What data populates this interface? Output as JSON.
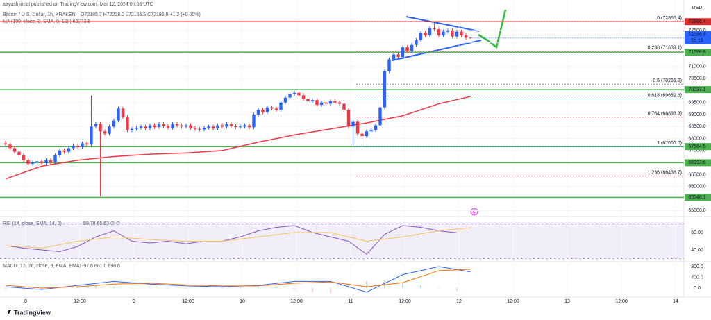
{
  "header": {
    "publisher": "aayushjindal published on TradingView.com, Mar 12, 2024 03:08 UTC",
    "symbol": "Bitcoin / U.S. Dollar, 1h, KRAKEN",
    "ohlc": "O72185.7 H72228.0 L72165.5 C72186.9 +1.2 (+0.00%)",
    "ma_label": "MA (100, close, 0, SMA, 0, 100) 69273.6",
    "currency": "USD"
  },
  "footer": {
    "brand": "TradingView"
  },
  "chart_data": {
    "type": "candlestick",
    "up_color": "#2962ff",
    "down_color": "#f23645",
    "ylim": [
      64750,
      73770
    ],
    "yticks": [
      {
        "value": 72500,
        "label": "72500.0"
      },
      {
        "value": 72000,
        "label": "72000.0"
      },
      {
        "value": 71000,
        "label": "71000.0"
      },
      {
        "value": 70500,
        "label": "70500.0"
      },
      {
        "value": 69500,
        "label": "69500.0"
      },
      {
        "value": 69000,
        "label": "69000.0"
      },
      {
        "value": 68500,
        "label": "68500.0"
      },
      {
        "value": 68000,
        "label": "68000.0"
      },
      {
        "value": 67500,
        "label": "67500.0"
      },
      {
        "value": 66500,
        "label": "66500.0"
      },
      {
        "value": 66000,
        "label": "66000.0"
      },
      {
        "value": 65500,
        "label": "65500.0"
      },
      {
        "value": 65000,
        "label": "65000.0"
      }
    ],
    "xtick_labels": [
      "8",
      "12:00",
      "9",
      "12:00",
      "10",
      "12:00",
      "11",
      "12:00",
      "12",
      "12:00",
      "13",
      "12:00",
      "14"
    ],
    "candles": [
      [
        67800,
        67900,
        67700,
        67750
      ],
      [
        67750,
        67830,
        67520,
        67600
      ],
      [
        67600,
        67680,
        67370,
        67450
      ],
      [
        67450,
        67530,
        67220,
        67300
      ],
      [
        67300,
        67380,
        67020,
        67100
      ],
      [
        67100,
        67180,
        66870,
        66950
      ],
      [
        66950,
        67080,
        66870,
        67000
      ],
      [
        67000,
        67130,
        66920,
        67050
      ],
      [
        67050,
        67130,
        66900,
        66980
      ],
      [
        66980,
        67180,
        66900,
        67100
      ],
      [
        67100,
        67180,
        66920,
        67000
      ],
      [
        67000,
        67380,
        66920,
        67300
      ],
      [
        67300,
        67580,
        67220,
        67500
      ],
      [
        67500,
        67580,
        67370,
        67450
      ],
      [
        67450,
        67680,
        67370,
        67600
      ],
      [
        67600,
        67780,
        67520,
        67700
      ],
      [
        67700,
        67780,
        67570,
        67650
      ],
      [
        67650,
        67880,
        67570,
        67800
      ],
      [
        67800,
        67880,
        67670,
        67750
      ],
      [
        67750,
        69800,
        67670,
        68500
      ],
      [
        68500,
        68680,
        68420,
        68600
      ],
      [
        68600,
        68680,
        65600,
        68300
      ],
      [
        68300,
        68380,
        68120,
        68200
      ],
      [
        68200,
        68580,
        68120,
        68500
      ],
      [
        68500,
        68830,
        68420,
        68750
      ],
      [
        68750,
        69330,
        68670,
        69250
      ],
      [
        69250,
        69330,
        68820,
        68900
      ],
      [
        68900,
        68980,
        68270,
        68350
      ],
      [
        68350,
        68480,
        68270,
        68400
      ],
      [
        68400,
        68530,
        68320,
        68450
      ],
      [
        68450,
        68580,
        68370,
        68500
      ],
      [
        68500,
        68580,
        68340,
        68420
      ],
      [
        68420,
        68630,
        68340,
        68550
      ],
      [
        68550,
        68630,
        68400,
        68480
      ],
      [
        68480,
        68680,
        68400,
        68600
      ],
      [
        68600,
        68680,
        68440,
        68520
      ],
      [
        68520,
        68600,
        68370,
        68450
      ],
      [
        68450,
        68680,
        68370,
        68600
      ],
      [
        68600,
        68680,
        68470,
        68550
      ],
      [
        68550,
        68630,
        68420,
        68500
      ],
      [
        68500,
        68630,
        68420,
        68550
      ],
      [
        68550,
        68630,
        68370,
        68450
      ],
      [
        68450,
        68530,
        68320,
        68400
      ],
      [
        68400,
        68480,
        68300,
        68380
      ],
      [
        68380,
        68530,
        68300,
        68450
      ],
      [
        68450,
        68580,
        68370,
        68500
      ],
      [
        68500,
        68580,
        68340,
        68420
      ],
      [
        68420,
        68630,
        68340,
        68550
      ],
      [
        68550,
        68630,
        68420,
        68500
      ],
      [
        68500,
        68680,
        68420,
        68600
      ],
      [
        68600,
        68680,
        68440,
        68520
      ],
      [
        68520,
        68600,
        68400,
        68480
      ],
      [
        68480,
        68580,
        68400,
        68500
      ],
      [
        68500,
        68630,
        68420,
        68550
      ],
      [
        68550,
        68630,
        68390,
        68470
      ],
      [
        68470,
        69080,
        68390,
        69000
      ],
      [
        69000,
        69280,
        68920,
        69200
      ],
      [
        69200,
        69280,
        69020,
        69100
      ],
      [
        69100,
        69380,
        69020,
        69300
      ],
      [
        69300,
        69380,
        69170,
        69250
      ],
      [
        69250,
        69330,
        69120,
        69200
      ],
      [
        69200,
        69580,
        69120,
        69500
      ],
      [
        69500,
        69780,
        69420,
        69700
      ],
      [
        69700,
        69930,
        69620,
        69850
      ],
      [
        69850,
        69980,
        69770,
        69900
      ],
      [
        69900,
        69980,
        69720,
        69800
      ],
      [
        69800,
        69880,
        69570,
        69650
      ],
      [
        69650,
        69730,
        69470,
        69550
      ],
      [
        69550,
        69680,
        69470,
        69600
      ],
      [
        69600,
        69680,
        69320,
        69400
      ],
      [
        69400,
        69580,
        69320,
        69500
      ],
      [
        69500,
        69580,
        69370,
        69450
      ],
      [
        69450,
        69630,
        69370,
        69550
      ],
      [
        69550,
        69630,
        69420,
        69500
      ],
      [
        69500,
        69580,
        69370,
        69450
      ],
      [
        69450,
        69530,
        69120,
        69200
      ],
      [
        69200,
        69280,
        68420,
        68500
      ],
      [
        68500,
        68780,
        67700,
        68700
      ],
      [
        68700,
        68780,
        68120,
        68200
      ],
      [
        68200,
        68280,
        67666,
        68100
      ],
      [
        68100,
        68380,
        68020,
        68300
      ],
      [
        68300,
        68430,
        68220,
        68350
      ],
      [
        68350,
        68630,
        68270,
        68550
      ],
      [
        68550,
        69380,
        68470,
        69300
      ],
      [
        69300,
        70880,
        69220,
        70800
      ],
      [
        70800,
        71380,
        70720,
        71300
      ],
      [
        71300,
        71580,
        71220,
        71500
      ],
      [
        71500,
        71580,
        71320,
        71400
      ],
      [
        71400,
        71880,
        71320,
        71800
      ],
      [
        71800,
        71880,
        71570,
        71650
      ],
      [
        71650,
        71980,
        71570,
        71900
      ],
      [
        71900,
        72180,
        71820,
        72100
      ],
      [
        72100,
        72480,
        72020,
        72400
      ],
      [
        72400,
        72480,
        72220,
        72300
      ],
      [
        72300,
        72680,
        72220,
        72600
      ],
      [
        72600,
        72866,
        72470,
        72550
      ],
      [
        72550,
        72630,
        72220,
        72300
      ],
      [
        72300,
        72530,
        72220,
        72450
      ],
      [
        72450,
        72580,
        72370,
        72500
      ],
      [
        72500,
        72580,
        72170,
        72250
      ],
      [
        72250,
        72530,
        72170,
        72450
      ],
      [
        72450,
        72530,
        72220,
        72300
      ],
      [
        72300,
        72380,
        72120,
        72200
      ],
      [
        72200,
        72228,
        72165,
        72187
      ]
    ],
    "ma100": {
      "color": "#f23645",
      "values": [
        66320,
        66850,
        67100,
        67250,
        67350,
        67400,
        67500,
        67850,
        68150,
        68400,
        68650,
        68950,
        69450,
        69750
      ]
    },
    "price_levels": [
      {
        "value": 72866.4,
        "color": "#d32f2f"
      },
      {
        "value": 71598.8,
        "color": "#4caf50"
      },
      {
        "value": 70037.1,
        "color": "#4caf50"
      },
      {
        "value": 67664.5,
        "color": "#4caf50"
      },
      {
        "value": 66993.6,
        "color": "#4caf50"
      },
      {
        "value": 65548.1,
        "color": "#4caf50"
      }
    ],
    "last_price": {
      "value": 72186.9,
      "countdown": "51:18",
      "color": "#2962ff"
    },
    "fib": [
      {
        "label": "0 (72866.4)",
        "value": 72866.4,
        "color": "#787b86"
      },
      {
        "label": "0.236 (71639.1)",
        "value": 71639.1,
        "color": "#f23645"
      },
      {
        "label": "0.5 (70266.2)",
        "value": 70266.2,
        "color": "#787b86"
      },
      {
        "label": "0.618 (69652.6)",
        "value": 69652.6,
        "color": "#089981"
      },
      {
        "label": "0.764 (68893.3)",
        "value": 68893.3,
        "color": "#f23645"
      },
      {
        "label": "1 (67666.0)",
        "value": 67666.0,
        "color": "#2962ff"
      },
      {
        "label": "1.236 (66438.7)",
        "value": 66438.7,
        "color": "#f23645"
      }
    ],
    "rsi": {
      "title": "RSI (14, close, SMA, 14, 2)",
      "readout": "59.78 65.63 ∅ ∅",
      "ylim": [
        28,
        73.6
      ],
      "yticks": [
        {
          "value": 60,
          "label": "60.00"
        },
        {
          "value": 40,
          "label": "40.00"
        }
      ],
      "band": [
        70,
        30
      ],
      "color": "#7e57c2",
      "ma_color": "#f7c35f",
      "values": [
        45,
        42,
        40,
        38,
        44,
        55,
        62,
        50,
        48,
        50,
        47,
        50,
        50,
        55,
        62,
        66,
        68,
        60,
        55,
        50,
        35,
        58,
        68,
        66,
        62,
        59.78
      ],
      "ma_values": [
        45,
        42,
        50,
        55,
        52,
        50,
        50,
        55,
        60,
        60,
        50,
        55,
        62,
        65.63
      ]
    },
    "macd": {
      "title": "MACD (12, 26, close, 9, EMA, EMA)",
      "readout": "-97.6 601.0 698.6",
      "ylim": [
        -335,
        955
      ],
      "yticks": [
        {
          "value": 800,
          "label": "800.0"
        },
        {
          "value": 400,
          "label": "400.0"
        },
        {
          "value": 0,
          "label": "0.0"
        }
      ],
      "macd_color": "#2962ff",
      "signal_color": "#ff6d00",
      "hist_up": "#b2dfdb",
      "hist_down": "#ffcdd2",
      "macd_values": [
        50,
        -50,
        100,
        250,
        150,
        80,
        50,
        100,
        250,
        250,
        -150,
        500,
        800,
        601
      ],
      "signal_values": [
        100,
        0,
        50,
        150,
        180,
        120,
        80,
        80,
        180,
        230,
        50,
        200,
        650,
        698.6
      ],
      "histogram": [
        -50,
        -60,
        -40,
        20,
        60,
        80,
        40,
        0,
        -20,
        -30,
        -20,
        10,
        30,
        40,
        50,
        30,
        -50,
        -150,
        -200,
        100,
        250,
        300,
        200,
        100,
        0,
        -97.6
      ]
    }
  }
}
